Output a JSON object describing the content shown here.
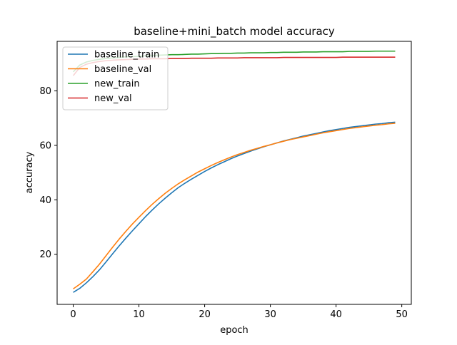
{
  "chart_data": {
    "type": "line",
    "title": "baseline+mini_batch model accuracy",
    "xlabel": "epoch",
    "ylabel": "accuracy",
    "xlim": [
      -2.45,
      51.45
    ],
    "ylim": [
      1.6,
      98.2
    ],
    "xticks": [
      0,
      10,
      20,
      30,
      40,
      50
    ],
    "yticks": [
      20,
      40,
      60,
      80
    ],
    "grid": false,
    "legend_position": "upper-left",
    "x": [
      0,
      1,
      2,
      3,
      4,
      5,
      6,
      7,
      8,
      9,
      10,
      11,
      12,
      13,
      14,
      15,
      16,
      17,
      18,
      19,
      20,
      21,
      22,
      23,
      24,
      25,
      26,
      27,
      28,
      29,
      30,
      31,
      32,
      33,
      34,
      35,
      36,
      37,
      38,
      39,
      40,
      41,
      42,
      43,
      44,
      45,
      46,
      47,
      48,
      49
    ],
    "series": [
      {
        "name": "baseline_train",
        "color": "#1f77b4",
        "values": [
          6.0,
          7.5,
          9.5,
          11.8,
          14.3,
          17.2,
          20.2,
          23.1,
          25.9,
          28.6,
          31.2,
          33.8,
          36.2,
          38.5,
          40.6,
          42.6,
          44.5,
          46.1,
          47.6,
          49.0,
          50.4,
          51.7,
          52.9,
          54.0,
          55.1,
          56.1,
          57.0,
          57.9,
          58.7,
          59.5,
          60.2,
          60.9,
          61.6,
          62.2,
          62.8,
          63.4,
          63.9,
          64.4,
          64.9,
          65.4,
          65.8,
          66.2,
          66.6,
          66.9,
          67.2,
          67.5,
          67.8,
          68.0,
          68.3,
          68.5
        ]
      },
      {
        "name": "baseline_val",
        "color": "#ff7f0e",
        "values": [
          7.3,
          9.0,
          10.9,
          13.6,
          16.4,
          19.5,
          22.6,
          25.6,
          28.4,
          31.1,
          33.6,
          36.0,
          38.3,
          40.4,
          42.4,
          44.2,
          45.9,
          47.4,
          48.8,
          50.2,
          51.4,
          52.6,
          53.7,
          54.7,
          55.7,
          56.6,
          57.4,
          58.2,
          58.9,
          59.6,
          60.2,
          60.9,
          61.5,
          62.1,
          62.6,
          63.1,
          63.6,
          64.1,
          64.6,
          65.0,
          65.4,
          65.8,
          66.2,
          66.5,
          66.8,
          67.1,
          67.4,
          67.6,
          67.9,
          68.1
        ]
      },
      {
        "name": "new_train",
        "color": "#2ca02c",
        "values": [
          87.0,
          89.5,
          90.6,
          91.2,
          91.6,
          91.9,
          92.1,
          92.3,
          92.5,
          92.6,
          92.7,
          92.9,
          93.0,
          93.1,
          93.2,
          93.3,
          93.3,
          93.4,
          93.5,
          93.5,
          93.6,
          93.7,
          93.7,
          93.8,
          93.8,
          93.9,
          93.9,
          94.0,
          94.0,
          94.0,
          94.1,
          94.1,
          94.2,
          94.2,
          94.2,
          94.3,
          94.3,
          94.3,
          94.4,
          94.4,
          94.4,
          94.4,
          94.5,
          94.5,
          94.5,
          94.5,
          94.6,
          94.6,
          94.6,
          94.6
        ]
      },
      {
        "name": "new_val",
        "color": "#d62728",
        "values": [
          85.6,
          88.6,
          89.8,
          90.4,
          90.8,
          91.1,
          91.3,
          91.4,
          91.5,
          91.6,
          91.7,
          91.7,
          91.8,
          91.8,
          91.8,
          91.9,
          91.9,
          91.9,
          92.0,
          92.0,
          92.0,
          92.0,
          92.1,
          92.1,
          92.1,
          92.1,
          92.2,
          92.2,
          92.2,
          92.2,
          92.2,
          92.2,
          92.3,
          92.3,
          92.3,
          92.3,
          92.3,
          92.3,
          92.3,
          92.3,
          92.3,
          92.4,
          92.4,
          92.4,
          92.4,
          92.4,
          92.4,
          92.4,
          92.4,
          92.4
        ]
      }
    ]
  }
}
